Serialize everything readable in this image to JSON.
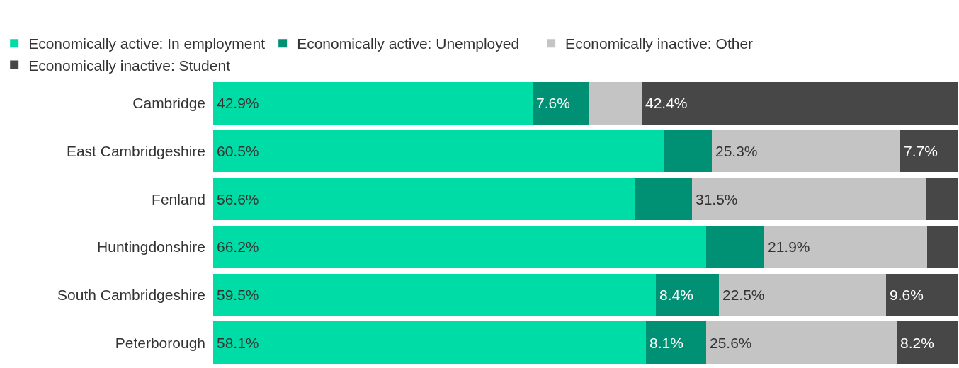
{
  "chart_data": {
    "type": "bar",
    "orientation": "horizontal",
    "stacked": true,
    "legend": "top",
    "categories": [
      "Cambridge",
      "East Cambridgeshire",
      "Fenland",
      "Huntingdonshire",
      "South Cambridgeshire",
      "Peterborough"
    ],
    "series": [
      {
        "name": "Economically active: In employment",
        "color": "#00dca6",
        "values": [
          42.9,
          60.5,
          56.6,
          66.2,
          59.5,
          58.1
        ],
        "value_labels": [
          "42.9%",
          "60.5%",
          "56.6%",
          "66.2%",
          "59.5%",
          "58.1%"
        ]
      },
      {
        "name": "Economically active: Unemployed",
        "color": "#009175",
        "values": [
          7.6,
          6.5,
          7.7,
          7.8,
          8.4,
          8.1
        ],
        "value_labels": [
          "7.6%",
          null,
          null,
          null,
          "8.4%",
          "8.1%"
        ]
      },
      {
        "name": "Economically inactive: Other",
        "color": "#c4c4c4",
        "values": [
          7.1,
          25.3,
          31.5,
          21.9,
          22.5,
          25.6
        ],
        "value_labels": [
          null,
          "25.3%",
          "31.5%",
          "21.9%",
          "22.5%",
          "25.6%"
        ]
      },
      {
        "name": "Economically inactive: Student",
        "color": "#474747",
        "values": [
          42.4,
          7.7,
          4.2,
          4.1,
          9.6,
          8.2
        ],
        "value_labels": [
          "42.4%",
          "7.7%",
          null,
          null,
          "9.6%",
          "8.2%"
        ]
      }
    ]
  }
}
